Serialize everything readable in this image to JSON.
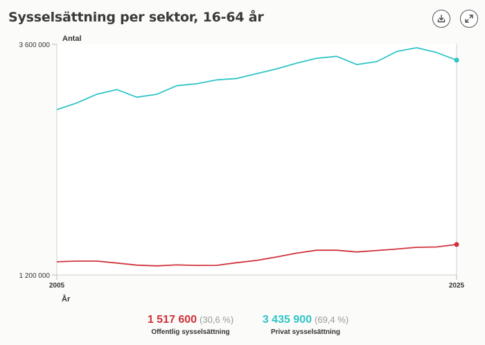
{
  "title": "Sysselsättning per sektor, 16-64 år",
  "toolbar": {
    "download_icon": "download-icon",
    "expand_icon": "expand-icon"
  },
  "legend": {
    "public": {
      "value": "1 517 600",
      "percent": "(30,6 %)",
      "name": "Offentlig sysselsättning"
    },
    "private": {
      "value": "3 435 900",
      "percent": "(69,4 %)",
      "name": "Privat sysselsättning"
    }
  },
  "chart_data": {
    "type": "line",
    "ylabel": "Antal",
    "xlabel": "År",
    "ylim": [
      1200000,
      3600000
    ],
    "xlim": [
      2005,
      2025
    ],
    "x_tick_labels": [
      "2005",
      "2025"
    ],
    "y_tick_labels": [
      "3 600 000",
      "1 200 000"
    ],
    "x": [
      2005,
      2006,
      2007,
      2008,
      2009,
      2010,
      2011,
      2012,
      2013,
      2014,
      2015,
      2016,
      2017,
      2018,
      2019,
      2020,
      2021,
      2022,
      2023,
      2024,
      2025
    ],
    "series": [
      {
        "name": "Privat sysselsättning",
        "color": "#2ec4c6",
        "values": [
          2920000,
          2990000,
          3080000,
          3130000,
          3050000,
          3080000,
          3170000,
          3190000,
          3230000,
          3245000,
          3295000,
          3345000,
          3405000,
          3455000,
          3475000,
          3390000,
          3420000,
          3525000,
          3565000,
          3515000,
          3435900
        ]
      },
      {
        "name": "Offentlig sysselsättning",
        "color": "#d0303a",
        "values": [
          1338000,
          1345000,
          1345000,
          1325000,
          1303000,
          1295000,
          1305000,
          1300000,
          1301000,
          1328000,
          1352000,
          1388000,
          1428000,
          1458000,
          1458000,
          1440000,
          1455000,
          1470000,
          1488000,
          1492000,
          1517600
        ]
      }
    ]
  }
}
